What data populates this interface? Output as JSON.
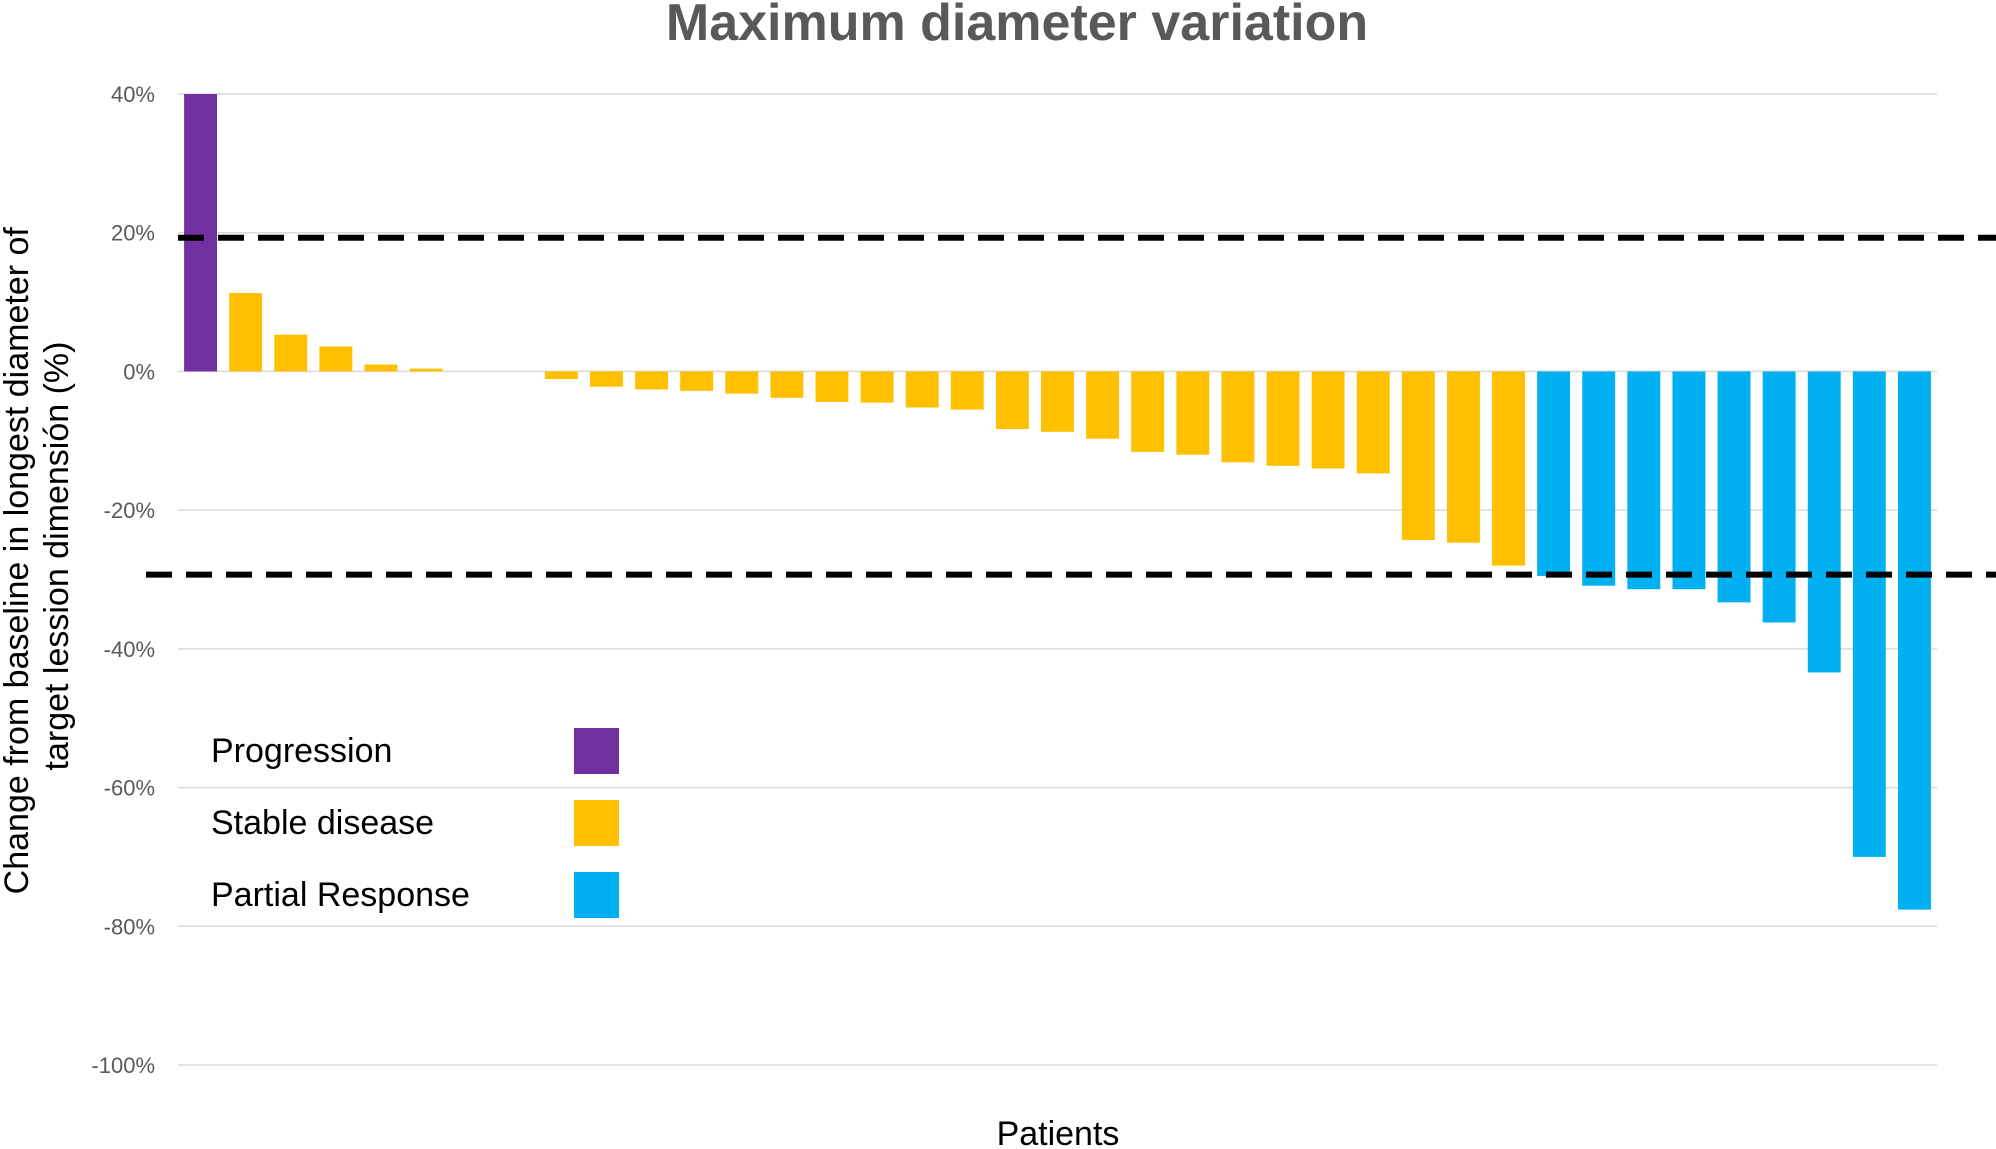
{
  "chart_data": {
    "type": "bar",
    "title": "Maximum diameter variation",
    "xlabel": "Patients",
    "ylabel_lines": [
      "Change from baseline in longest diameter of",
      "target lession dimensión (%)"
    ],
    "ylim": [
      -100,
      40
    ],
    "yticks": [
      40,
      20,
      0,
      -20,
      -40,
      -60,
      -80,
      -100
    ],
    "ytick_labels": [
      "40%",
      "20%",
      "0%",
      "-20%",
      "-40%",
      "-60%",
      "-80%",
      "-100%"
    ],
    "grid": true,
    "reference_lines": [
      20,
      -29
    ],
    "legend_position": "bottom-left",
    "legend": [
      {
        "label": "Progression",
        "color": "#7030A0"
      },
      {
        "label": "Stable disease",
        "color": "#FFC000"
      },
      {
        "label": "Partial Response",
        "color": "#00B0F0"
      }
    ],
    "values": [
      40,
      11.3,
      5.3,
      3.6,
      1,
      0.4,
      0,
      0,
      -1.1,
      -2.2,
      -2.6,
      -2.8,
      -3.2,
      -3.8,
      -4.4,
      -4.5,
      -5.2,
      -5.5,
      -8.3,
      -8.7,
      -9.7,
      -11.6,
      -12,
      -13.1,
      -13.6,
      -14,
      -14.7,
      -24.3,
      -24.7,
      -28,
      -29.5,
      -30.9,
      -31.4,
      -31.4,
      -33.3,
      -36.2,
      -43.4,
      -70,
      -77.6
    ],
    "categories": [
      "Progression",
      "Stable disease",
      "Stable disease",
      "Stable disease",
      "Stable disease",
      "Stable disease",
      "Stable disease",
      "Stable disease",
      "Stable disease",
      "Stable disease",
      "Stable disease",
      "Stable disease",
      "Stable disease",
      "Stable disease",
      "Stable disease",
      "Stable disease",
      "Stable disease",
      "Stable disease",
      "Stable disease",
      "Stable disease",
      "Stable disease",
      "Stable disease",
      "Stable disease",
      "Stable disease",
      "Stable disease",
      "Stable disease",
      "Stable disease",
      "Stable disease",
      "Stable disease",
      "Stable disease",
      "Partial Response",
      "Partial Response",
      "Partial Response",
      "Partial Response",
      "Partial Response",
      "Partial Response",
      "Partial Response",
      "Partial Response",
      "Partial Response"
    ]
  }
}
